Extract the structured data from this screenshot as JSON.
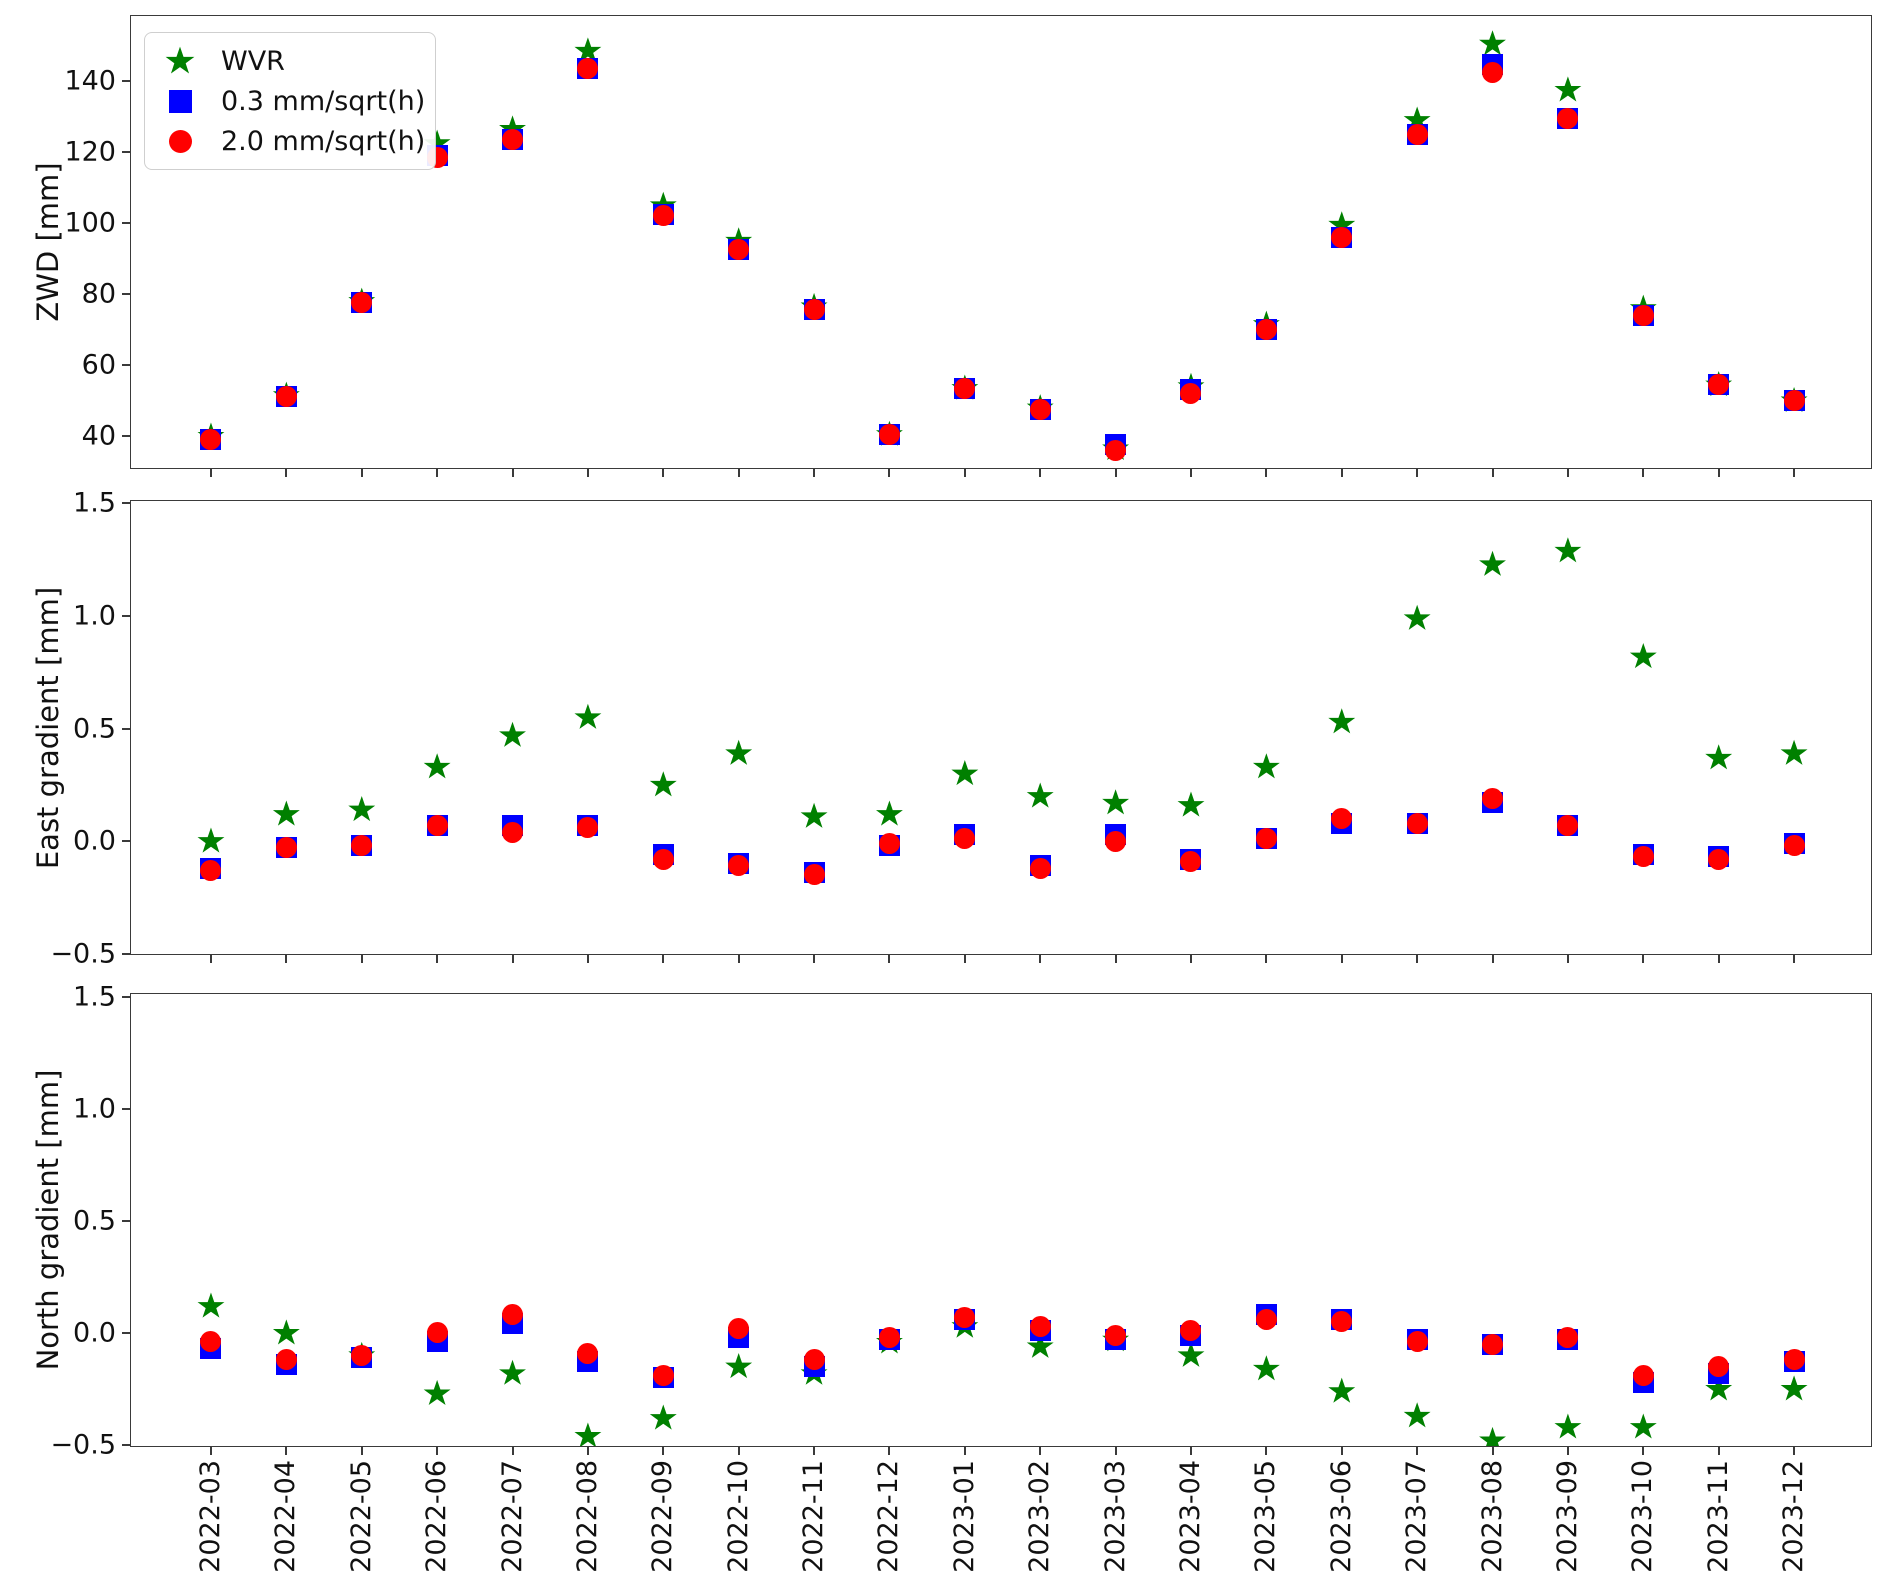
{
  "figure": {
    "background": "#ffffff",
    "spine_color": "#3a3a3a",
    "legend": {
      "items": [
        {
          "label": "WVR",
          "marker": "star",
          "color": "#008000"
        },
        {
          "label": "0.3 mm/sqrt(h)",
          "marker": "square",
          "color": "#0000ff"
        },
        {
          "label": "2.0 mm/sqrt(h)",
          "marker": "circle",
          "color": "#ff0000"
        }
      ]
    }
  },
  "chart_data": {
    "type": "scatter",
    "legend_position": "upper left of first panel",
    "grid": false,
    "x_categories": [
      "2022-03",
      "2022-04",
      "2022-05",
      "2022-06",
      "2022-07",
      "2022-08",
      "2022-09",
      "2022-10",
      "2022-11",
      "2022-12",
      "2023-01",
      "2023-02",
      "2023-03",
      "2023-04",
      "2023-05",
      "2023-06",
      "2023-07",
      "2023-08",
      "2023-09",
      "2023-10",
      "2023-11",
      "2023-12"
    ],
    "xlim_index": [
      -1.061,
      22.047
    ],
    "panels": [
      {
        "ylabel": "ZWD [mm]",
        "ylim": [
          30.4,
          158.3
        ],
        "yticks": [
          {
            "v": 40,
            "label": "40"
          },
          {
            "v": 60,
            "label": "60"
          },
          {
            "v": 80,
            "label": "80"
          },
          {
            "v": 100,
            "label": "100"
          },
          {
            "v": 120,
            "label": "120"
          },
          {
            "v": 140,
            "label": "140"
          }
        ],
        "series": [
          {
            "id": "wvr",
            "name": "WVR",
            "marker": "star",
            "color": "#008000",
            "values": [
              40,
              51.5,
              78,
              122.5,
              126.5,
              148.5,
              105,
              95,
              76.5,
              40.5,
              53.5,
              48,
              36.5,
              54,
              71.5,
              99.5,
              129,
              150.5,
              137.5,
              76,
              54.5,
              50
            ]
          },
          {
            "id": "rate-0-3",
            "name": "0.3 mm/sqrt(h)",
            "marker": "square",
            "color": "#0000ff",
            "values": [
              39,
              51,
              77.5,
              119,
              123.5,
              143.5,
              102.5,
              92.5,
              75.5,
              40.5,
              53.5,
              47.5,
              37.5,
              53,
              70,
              96,
              125,
              144.5,
              129.5,
              74,
              54.5,
              50
            ]
          },
          {
            "id": "rate-2-0",
            "name": "2.0 mm/sqrt(h)",
            "marker": "circle",
            "color": "#ff0000",
            "values": [
              39,
              51,
              77.5,
              118.5,
              123.5,
              143.5,
              102,
              92.5,
              75.5,
              40.5,
              53.5,
              47.5,
              36,
              52,
              70,
              96,
              125,
              142.5,
              129.5,
              74,
              54.5,
              50
            ]
          }
        ]
      },
      {
        "ylabel": "East gradient [mm]",
        "ylim": [
          -0.511,
          1.511
        ],
        "yticks": [
          {
            "v": -0.5,
            "label": "−0.5"
          },
          {
            "v": 0.0,
            "label": "0.0"
          },
          {
            "v": 0.5,
            "label": "0.5"
          },
          {
            "v": 1.0,
            "label": "1.0"
          },
          {
            "v": 1.5,
            "label": "1.5"
          }
        ],
        "series": [
          {
            "id": "wvr",
            "name": "WVR",
            "marker": "star",
            "color": "#008000",
            "values": [
              0.0,
              0.12,
              0.14,
              0.33,
              0.47,
              0.55,
              0.25,
              0.39,
              0.11,
              0.12,
              0.3,
              0.2,
              0.17,
              0.16,
              0.33,
              0.53,
              0.99,
              1.23,
              1.29,
              0.82,
              0.37,
              0.39
            ]
          },
          {
            "id": "rate-0-3",
            "name": "0.3 mm/sqrt(h)",
            "marker": "square",
            "color": "#0000ff",
            "values": [
              -0.12,
              -0.03,
              -0.02,
              0.07,
              0.07,
              0.07,
              -0.06,
              -0.1,
              -0.14,
              -0.02,
              0.03,
              -0.11,
              0.03,
              -0.08,
              0.01,
              0.08,
              0.08,
              0.17,
              0.07,
              -0.06,
              -0.07,
              -0.01
            ]
          },
          {
            "id": "rate-2-0",
            "name": "2.0 mm/sqrt(h)",
            "marker": "circle",
            "color": "#ff0000",
            "values": [
              -0.13,
              -0.03,
              -0.02,
              0.07,
              0.04,
              0.06,
              -0.08,
              -0.11,
              -0.15,
              -0.01,
              0.01,
              -0.12,
              0.0,
              -0.09,
              0.01,
              0.1,
              0.08,
              0.19,
              0.07,
              -0.07,
              -0.08,
              -0.02
            ]
          }
        ]
      },
      {
        "ylabel": "North gradient [mm]",
        "ylim": [
          -0.514,
          1.513
        ],
        "yticks": [
          {
            "v": -0.5,
            "label": "−0.5"
          },
          {
            "v": 0.0,
            "label": "0.0"
          },
          {
            "v": 0.5,
            "label": "0.5"
          },
          {
            "v": 1.0,
            "label": "1.0"
          },
          {
            "v": 1.5,
            "label": "1.5"
          }
        ],
        "series": [
          {
            "id": "wvr",
            "name": "WVR",
            "marker": "star",
            "color": "#008000",
            "values": [
              0.12,
              0.0,
              -0.1,
              -0.27,
              -0.18,
              -0.46,
              -0.38,
              -0.15,
              -0.18,
              -0.04,
              0.03,
              -0.06,
              -0.03,
              -0.1,
              -0.16,
              -0.26,
              -0.37,
              -0.48,
              -0.42,
              -0.42,
              -0.25,
              -0.25
            ]
          },
          {
            "id": "rate-0-3",
            "name": "0.3 mm/sqrt(h)",
            "marker": "square",
            "color": "#0000ff",
            "values": [
              -0.07,
              -0.14,
              -0.11,
              -0.04,
              0.04,
              -0.13,
              -0.2,
              -0.02,
              -0.15,
              -0.03,
              0.06,
              0.01,
              -0.03,
              -0.01,
              0.08,
              0.06,
              -0.03,
              -0.05,
              -0.03,
              -0.22,
              -0.18,
              -0.13
            ]
          },
          {
            "id": "rate-2-0",
            "name": "2.0 mm/sqrt(h)",
            "marker": "circle",
            "color": "#ff0000",
            "values": [
              -0.04,
              -0.12,
              -0.1,
              0.0,
              0.08,
              -0.09,
              -0.19,
              0.02,
              -0.12,
              -0.02,
              0.07,
              0.03,
              -0.01,
              0.01,
              0.06,
              0.05,
              -0.04,
              -0.05,
              -0.02,
              -0.19,
              -0.15,
              -0.12
            ]
          }
        ]
      }
    ]
  }
}
